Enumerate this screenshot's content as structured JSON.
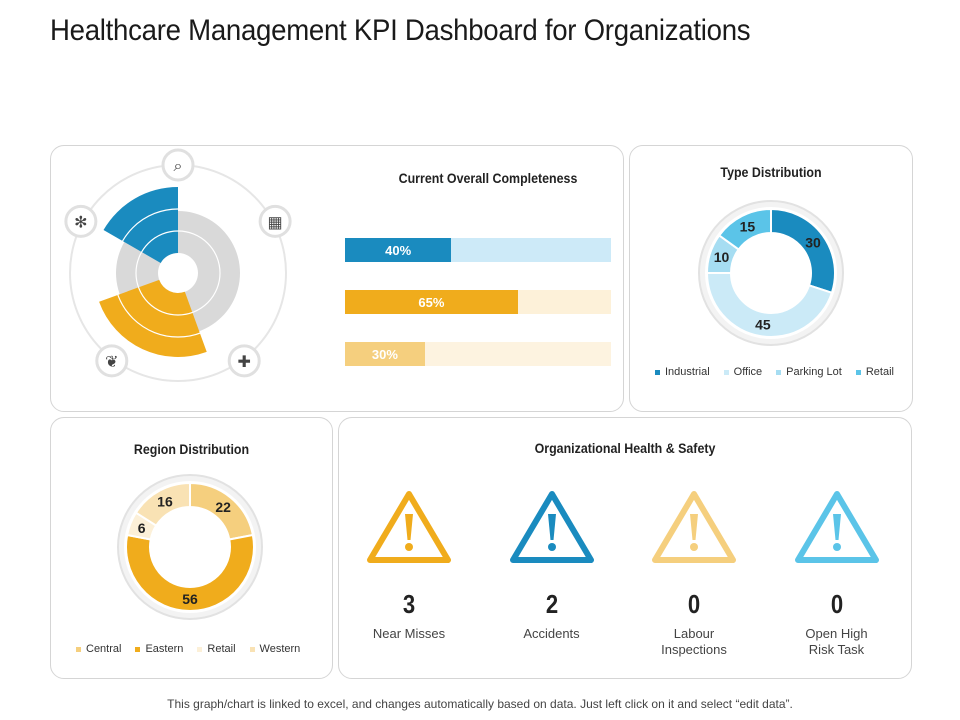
{
  "header": {
    "title": "Healthcare Management KPI Dashboard for Organizations"
  },
  "completeness": {
    "title": "Current Overall Completeness",
    "bars": [
      {
        "label": "40%",
        "value": 40,
        "color": "#1a8bbf",
        "track": "#cdeaf8"
      },
      {
        "label": "65%",
        "value": 65,
        "color": "#f0ac1c",
        "track": "#fdf1d9"
      },
      {
        "label": "30%",
        "value": 30,
        "color": "#f5cf7e",
        "track": "#fdf3e0"
      }
    ]
  },
  "polar": {
    "icons": [
      "server-search-icon",
      "hospital-building-icon",
      "first-aid-kit-icon",
      "leaf-icon",
      "fan-icon"
    ],
    "colors": {
      "blue": "#1a8bbf",
      "orange": "#f0ac1c",
      "gray": "#d9d9d9"
    }
  },
  "chart_data": [
    {
      "type": "pie",
      "title": "Type Distribution",
      "categories": [
        "Industrial",
        "Office",
        "Parking Lot",
        "Retail"
      ],
      "values": [
        30,
        45,
        10,
        15
      ],
      "colors": [
        "#1a8bbf",
        "#cbeaf7",
        "#a6ddf2",
        "#5bc4e8"
      ],
      "legend": "bottom"
    },
    {
      "type": "pie",
      "title": "Region Distribution",
      "categories": [
        "Central",
        "Eastern",
        "Retail",
        "Western"
      ],
      "values": [
        22,
        56,
        6,
        16
      ],
      "colors": [
        "#f5cf7e",
        "#f0ac1c",
        "#fcf0d8",
        "#f9e2b4"
      ],
      "legend": "bottom"
    }
  ],
  "safety": {
    "title": "Organizational Health & Safety",
    "items": [
      {
        "value": "3",
        "label": "Near Misses",
        "color": "#f0ac1c"
      },
      {
        "value": "2",
        "label": "Accidents",
        "color": "#1a8bbf"
      },
      {
        "value": "0",
        "label": "Labour Inspections",
        "color": "#f5cf7e"
      },
      {
        "value": "0",
        "label": "Open High Risk Task",
        "color": "#5bc4e8"
      }
    ]
  },
  "footer": {
    "text": "This graph/chart is linked to excel, and changes automatically based on data. Just left click on it and select “edit data”."
  }
}
